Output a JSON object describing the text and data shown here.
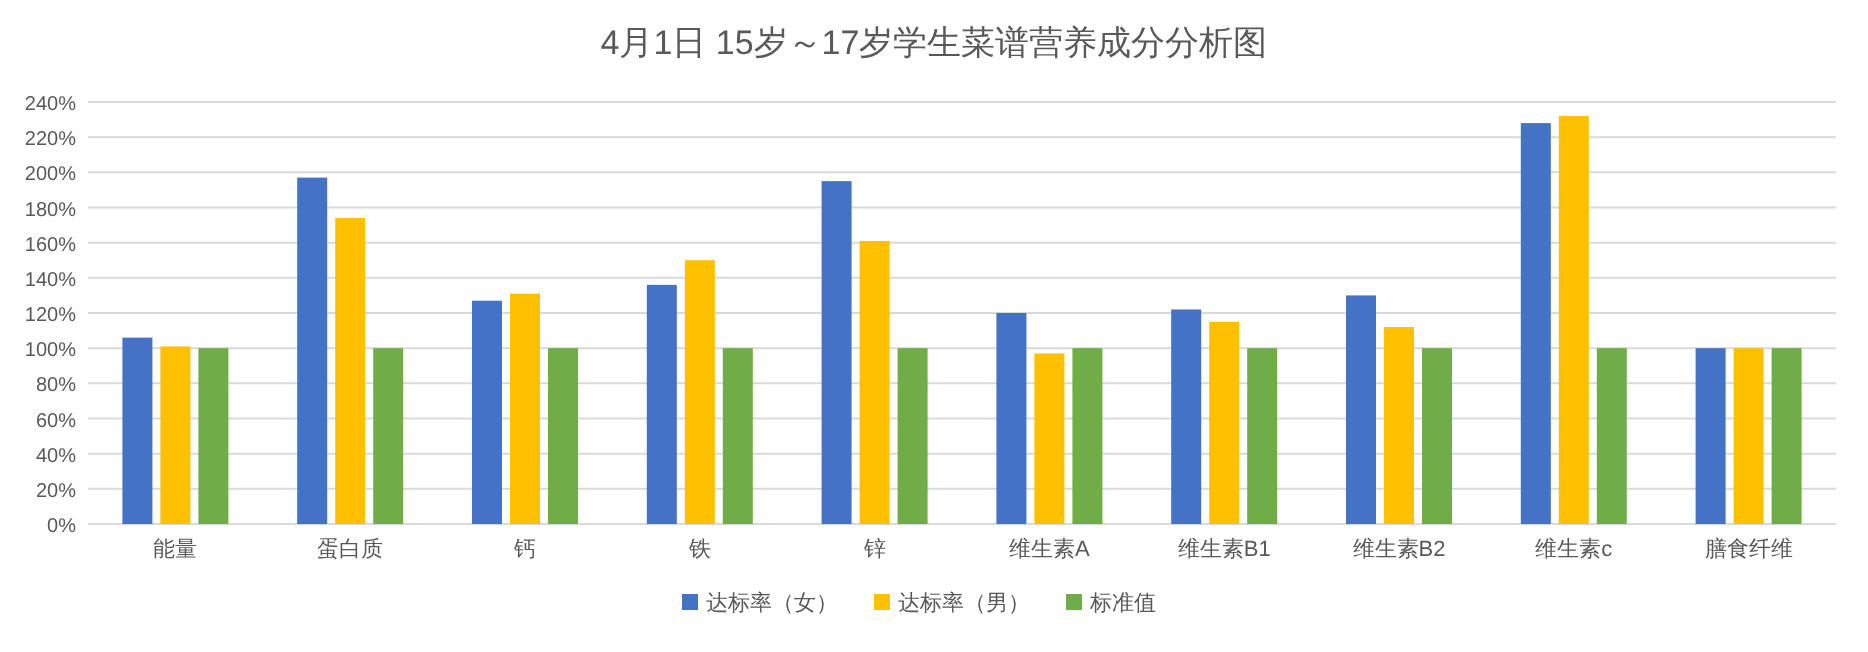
{
  "chart_data": {
    "type": "bar",
    "title": "4月1日 15岁～17岁学生菜谱营养成分分析图",
    "categories": [
      "能量",
      "蛋白质",
      "钙",
      "铁",
      "锌",
      "维生素A",
      "维生素B1",
      "维生素B2",
      "维生素c",
      "膳食纤维"
    ],
    "series": [
      {
        "name": "达标率（女）",
        "color": "#4472c4",
        "values": [
          106,
          197,
          127,
          136,
          195,
          120,
          122,
          130,
          228,
          100
        ]
      },
      {
        "name": "达标率（男）",
        "color": "#ffc000",
        "values": [
          101,
          174,
          131,
          150,
          161,
          97,
          115,
          112,
          232,
          100
        ]
      },
      {
        "name": "标准值",
        "color": "#70ad47",
        "values": [
          100,
          100,
          100,
          100,
          100,
          100,
          100,
          100,
          100,
          100
        ]
      }
    ],
    "ylim": [
      0,
      240
    ],
    "yticks": [
      {
        "value": 0,
        "label": "0%"
      },
      {
        "value": 20,
        "label": "20%"
      },
      {
        "value": 40,
        "label": "40%"
      },
      {
        "value": 60,
        "label": "60%"
      },
      {
        "value": 80,
        "label": "80%"
      },
      {
        "value": 100,
        "label": "100%"
      },
      {
        "value": 120,
        "label": "120%"
      },
      {
        "value": 140,
        "label": "140%"
      },
      {
        "value": 160,
        "label": "160%"
      },
      {
        "value": 180,
        "label": "180%"
      },
      {
        "value": 200,
        "label": "200%"
      },
      {
        "value": 220,
        "label": "220%"
      },
      {
        "value": 240,
        "label": "240%"
      }
    ],
    "grid": "y",
    "legend": "bottom"
  }
}
